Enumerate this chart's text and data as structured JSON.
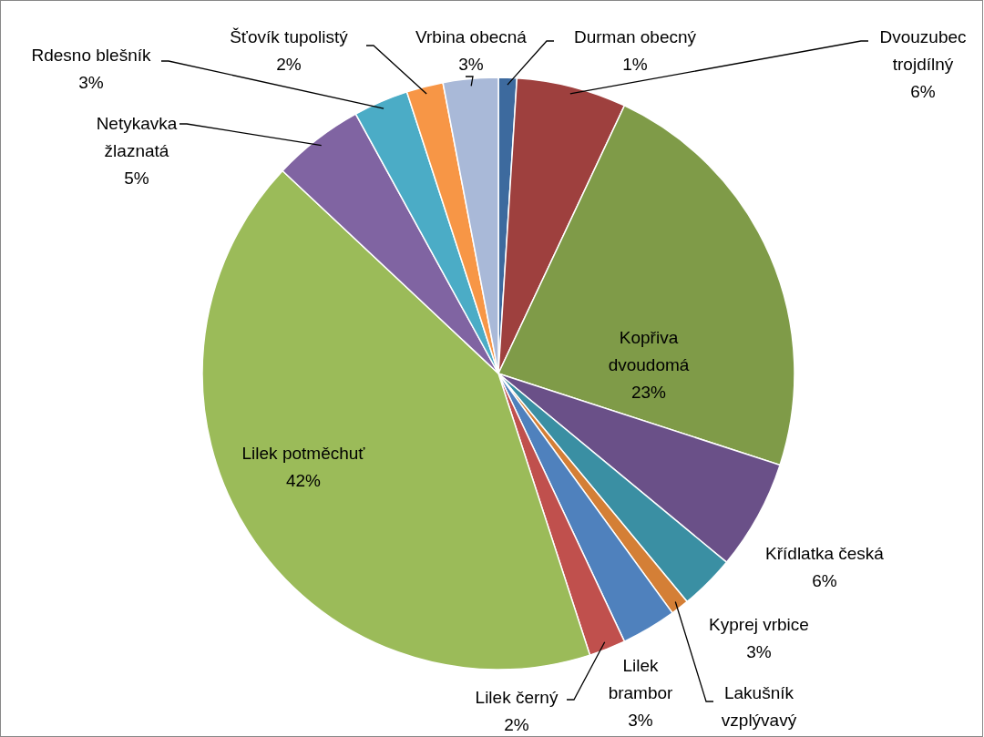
{
  "chart_data": {
    "type": "pie",
    "categories": [
      "Durman obecný",
      "Dvouzubec trojdílný",
      "Kopřiva dvoudomá",
      "Křídlatka česká",
      "Kyprej vrbice",
      "Lakušník vzplývavý",
      "Lilek brambor",
      "Lilek černý",
      "Lilek potměchuť",
      "Netykavka žlaznatá",
      "Rdesno blešník",
      "Šťovík tupolistý",
      "Vrbina obecná"
    ],
    "values": [
      1,
      6,
      23,
      6,
      3,
      1,
      3,
      2,
      42,
      5,
      3,
      2,
      3
    ],
    "value_labels": [
      "1%",
      "6%",
      "23%",
      "6%",
      "3%",
      null,
      "3%",
      "2%",
      "42%",
      "5%",
      "3%",
      "2%",
      "3%"
    ],
    "colors": [
      "#3d6a9e",
      "#9e403e",
      "#7f9b48",
      "#6a5088",
      "#3a8fa3",
      "#d47f36",
      "#4f81bd",
      "#c0504d",
      "#9bbb59",
      "#8064a2",
      "#4bacc6",
      "#f79646",
      "#a9b9d8"
    ]
  }
}
